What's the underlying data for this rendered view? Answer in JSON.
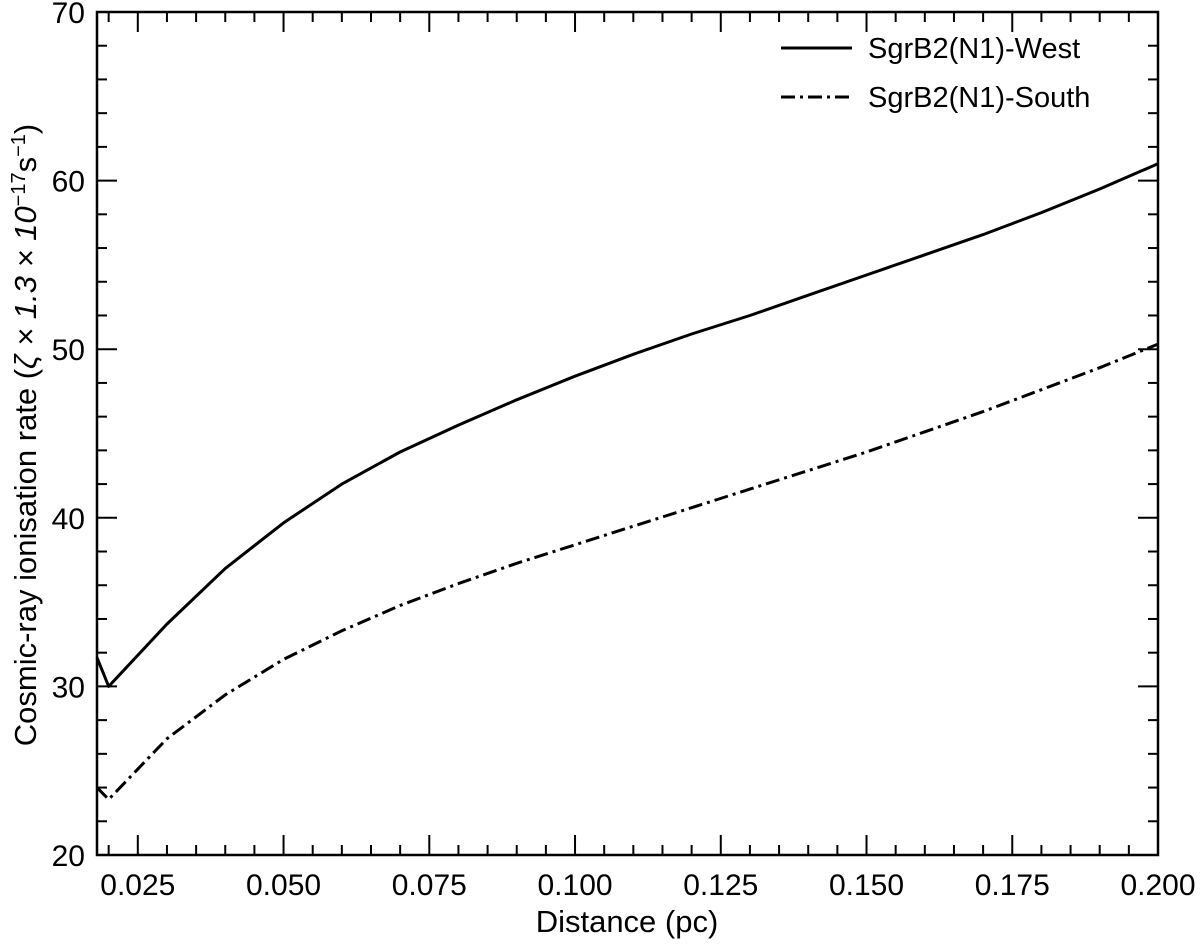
{
  "chart_data": {
    "type": "line",
    "xlabel": "Distance (pc)",
    "ylabel_main": "Cosmic-ray ionisation rate (",
    "ylabel_zeta": "ζ × 1.3 × 10",
    "ylabel_exp1": "−17",
    "ylabel_unit": "s",
    "ylabel_exp2": "−1",
    "ylabel_close": ")",
    "xlim": [
      0.018,
      0.2
    ],
    "ylim": [
      20,
      70
    ],
    "xticks": [
      0.025,
      0.05,
      0.075,
      0.1,
      0.125,
      0.15,
      0.175,
      0.2
    ],
    "xtick_labels": [
      "0.025",
      "0.050",
      "0.075",
      "0.100",
      "0.125",
      "0.150",
      "0.175",
      "0.200"
    ],
    "yticks": [
      20,
      30,
      40,
      50,
      60,
      70
    ],
    "ytick_labels": [
      "20",
      "30",
      "40",
      "50",
      "60",
      "70"
    ],
    "legend_position": "top-right",
    "grid": false,
    "series": [
      {
        "name": "SgrB2(N1)-West",
        "style": "solid",
        "color": "#000000",
        "x": [
          0.018,
          0.02,
          0.03,
          0.04,
          0.05,
          0.06,
          0.07,
          0.08,
          0.09,
          0.1,
          0.11,
          0.12,
          0.13,
          0.14,
          0.15,
          0.16,
          0.17,
          0.18,
          0.19,
          0.2
        ],
        "y": [
          31.7,
          30.0,
          33.7,
          37.0,
          39.7,
          42.0,
          43.9,
          45.5,
          47.0,
          48.4,
          49.7,
          50.9,
          52.0,
          53.2,
          54.4,
          55.6,
          56.8,
          58.1,
          59.5,
          61.0
        ]
      },
      {
        "name": "SgrB2(N1)-South",
        "style": "dashdot",
        "color": "#000000",
        "x": [
          0.018,
          0.02,
          0.03,
          0.04,
          0.05,
          0.06,
          0.07,
          0.08,
          0.09,
          0.1,
          0.11,
          0.12,
          0.13,
          0.14,
          0.15,
          0.16,
          0.17,
          0.18,
          0.19,
          0.2
        ],
        "y": [
          24.0,
          23.3,
          26.9,
          29.5,
          31.6,
          33.3,
          34.8,
          36.1,
          37.3,
          38.4,
          39.5,
          40.6,
          41.7,
          42.8,
          43.9,
          45.1,
          46.3,
          47.6,
          48.9,
          50.3
        ]
      }
    ]
  }
}
